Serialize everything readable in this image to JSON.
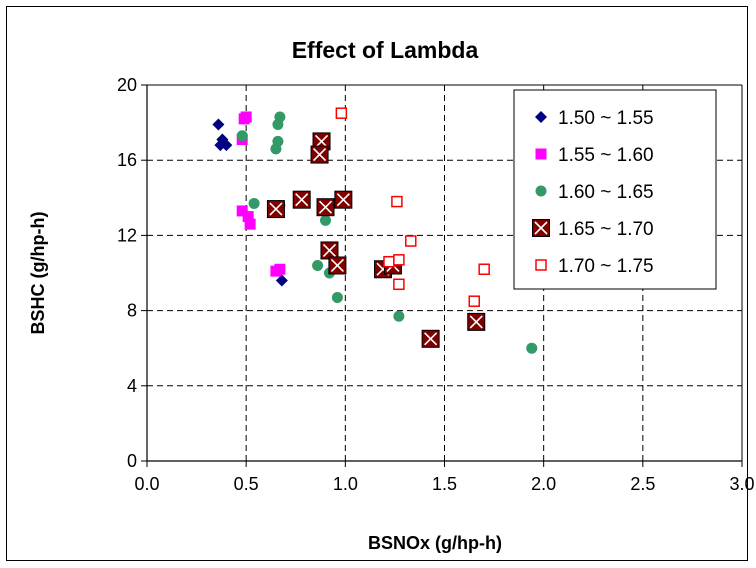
{
  "chart_data": {
    "type": "scatter",
    "title": "Effect of Lambda",
    "xlabel": "BSNOx (g/hp-h)",
    "ylabel": "BSHC (g/hp-h)",
    "xlim": [
      0,
      3
    ],
    "ylim": [
      0,
      20
    ],
    "xticks": [
      "0.0",
      "0.5",
      "1.0",
      "1.5",
      "2.0",
      "2.5",
      "3.0"
    ],
    "yticks": [
      "0",
      "4",
      "8",
      "12",
      "16",
      "20"
    ],
    "grid": true,
    "legend_position": "top-right",
    "series": [
      {
        "name": "1.50 ~ 1.55",
        "marker": "diamond",
        "color": "#000080",
        "points": [
          [
            0.36,
            17.9
          ],
          [
            0.37,
            16.8
          ],
          [
            0.38,
            17.1
          ],
          [
            0.4,
            16.8
          ],
          [
            0.68,
            9.6
          ]
        ]
      },
      {
        "name": "1.55 ~ 1.60",
        "marker": "square",
        "color": "#ff00ff",
        "points": [
          [
            0.48,
            17.1
          ],
          [
            0.49,
            18.2
          ],
          [
            0.5,
            18.3
          ],
          [
            0.48,
            13.3
          ],
          [
            0.51,
            13.0
          ],
          [
            0.52,
            12.6
          ],
          [
            0.65,
            10.1
          ],
          [
            0.67,
            10.2
          ]
        ]
      },
      {
        "name": "1.60 ~ 1.65",
        "marker": "circle",
        "color": "#339966",
        "points": [
          [
            0.48,
            17.3
          ],
          [
            0.66,
            17.0
          ],
          [
            0.66,
            17.9
          ],
          [
            0.67,
            18.3
          ],
          [
            0.65,
            16.6
          ],
          [
            0.54,
            13.7
          ],
          [
            0.67,
            13.6
          ],
          [
            0.9,
            12.8
          ],
          [
            0.86,
            10.4
          ],
          [
            0.92,
            10.0
          ],
          [
            0.96,
            8.7
          ],
          [
            1.27,
            7.7
          ],
          [
            1.94,
            6.0
          ]
        ]
      },
      {
        "name": "1.65 ~ 1.70",
        "marker": "xbox",
        "color": "#800000",
        "points": [
          [
            0.88,
            17.0
          ],
          [
            0.87,
            16.3
          ],
          [
            0.78,
            13.9
          ],
          [
            0.9,
            13.5
          ],
          [
            0.99,
            13.9
          ],
          [
            0.65,
            13.4
          ],
          [
            0.92,
            11.2
          ],
          [
            0.96,
            10.4
          ],
          [
            1.19,
            10.2
          ],
          [
            1.24,
            10.4
          ],
          [
            1.43,
            6.5
          ],
          [
            1.66,
            7.4
          ]
        ]
      },
      {
        "name": "1.70 ~ 1.75",
        "marker": "open-square",
        "color": "#ff0000",
        "points": [
          [
            0.98,
            18.5
          ],
          [
            1.26,
            13.8
          ],
          [
            1.33,
            11.7
          ],
          [
            1.22,
            10.6
          ],
          [
            1.27,
            10.7
          ],
          [
            1.27,
            9.4
          ],
          [
            1.7,
            10.2
          ],
          [
            1.65,
            8.5
          ]
        ]
      }
    ]
  }
}
